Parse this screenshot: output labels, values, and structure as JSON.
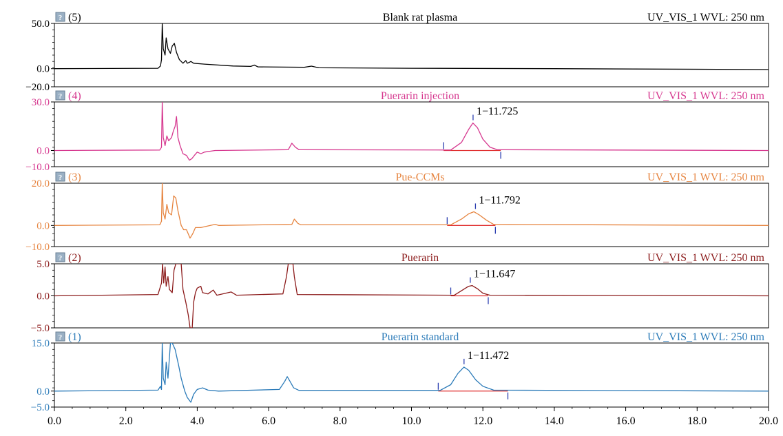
{
  "chart_data": {
    "type": "line",
    "x_axis": {
      "range": [
        0.0,
        20.0
      ],
      "tick_labels": [
        "0.0",
        "2.0",
        "4.0",
        "6.0",
        "8.0",
        "10.0",
        "12.0",
        "14.0",
        "16.0",
        "18.0",
        "20.0"
      ]
    },
    "panels": [
      {
        "id": "(5)",
        "title": "Blank rat plasma",
        "detector": "UV_VIS_1 WVL: 250 nm",
        "color": "#000000",
        "y_range": [
          -20.0,
          50.0
        ],
        "y_tick_labels": [
          "50.0",
          "0.0",
          "−20.0"
        ],
        "y_tick_values": [
          50,
          0,
          -20
        ],
        "points": [
          [
            0,
            0
          ],
          [
            2.9,
            0.5
          ],
          [
            2.97,
            3
          ],
          [
            3.0,
            10
          ],
          [
            3.02,
            50
          ],
          [
            3.05,
            22
          ],
          [
            3.1,
            15
          ],
          [
            3.13,
            34
          ],
          [
            3.18,
            22
          ],
          [
            3.25,
            17
          ],
          [
            3.3,
            25
          ],
          [
            3.36,
            28
          ],
          [
            3.42,
            18
          ],
          [
            3.5,
            10
          ],
          [
            3.6,
            6
          ],
          [
            3.68,
            9
          ],
          [
            3.72,
            6
          ],
          [
            3.78,
            7
          ],
          [
            3.82,
            8
          ],
          [
            3.9,
            6
          ],
          [
            4.2,
            5
          ],
          [
            5.0,
            3
          ],
          [
            5.5,
            2.5
          ],
          [
            5.6,
            4
          ],
          [
            5.7,
            2
          ],
          [
            7.0,
            1.5
          ],
          [
            7.2,
            2.8
          ],
          [
            7.4,
            1
          ],
          [
            10,
            0.5
          ],
          [
            14,
            0
          ],
          [
            20,
            -1
          ]
        ],
        "peak": null
      },
      {
        "id": "(4)",
        "title": "Puerarin injection",
        "detector": "UV_VIS_1 WVL: 250 nm",
        "color": "#d6388f",
        "y_range": [
          -10.0,
          30.0
        ],
        "y_tick_labels": [
          "30.0",
          "0.0",
          "−10.0"
        ],
        "y_tick_values": [
          30,
          0,
          -10
        ],
        "points": [
          [
            0,
            0
          ],
          [
            2.95,
            0.3
          ],
          [
            3.0,
            2
          ],
          [
            3.02,
            30
          ],
          [
            3.05,
            8
          ],
          [
            3.1,
            3
          ],
          [
            3.15,
            9
          ],
          [
            3.2,
            6
          ],
          [
            3.28,
            8
          ],
          [
            3.33,
            12
          ],
          [
            3.38,
            15
          ],
          [
            3.42,
            21
          ],
          [
            3.46,
            8
          ],
          [
            3.52,
            3
          ],
          [
            3.6,
            -2
          ],
          [
            3.7,
            -3
          ],
          [
            3.78,
            -6
          ],
          [
            3.85,
            -5
          ],
          [
            3.92,
            -3
          ],
          [
            4.0,
            -1
          ],
          [
            4.1,
            -2
          ],
          [
            4.2,
            -1
          ],
          [
            4.5,
            0
          ],
          [
            6.55,
            0.5
          ],
          [
            6.65,
            4.5
          ],
          [
            6.75,
            2
          ],
          [
            6.85,
            0.5
          ],
          [
            11.1,
            0.3
          ],
          [
            11.4,
            5
          ],
          [
            11.6,
            13
          ],
          [
            11.72,
            17
          ],
          [
            11.85,
            14
          ],
          [
            12.0,
            7
          ],
          [
            12.2,
            2
          ],
          [
            12.4,
            0.5
          ],
          [
            20,
            0
          ]
        ],
        "peak": {
          "label": "1−11.725",
          "rt": 11.725,
          "height": 17,
          "baseline_start": 10.9,
          "baseline_end": 12.5
        }
      },
      {
        "id": "(3)",
        "title": "Pue-CCMs",
        "detector": "UV_VIS_1 WVL: 250 nm",
        "color": "#e6843f",
        "y_range": [
          -10.0,
          20.0
        ],
        "y_tick_labels": [
          "20.0",
          "0.0",
          "−10.0"
        ],
        "y_tick_values": [
          20,
          0,
          -10
        ],
        "points": [
          [
            0,
            0
          ],
          [
            2.95,
            0.3
          ],
          [
            3.0,
            2
          ],
          [
            3.02,
            20
          ],
          [
            3.05,
            6
          ],
          [
            3.1,
            3
          ],
          [
            3.15,
            10
          ],
          [
            3.2,
            6
          ],
          [
            3.28,
            5
          ],
          [
            3.34,
            14
          ],
          [
            3.4,
            13
          ],
          [
            3.46,
            7
          ],
          [
            3.55,
            0
          ],
          [
            3.62,
            -2
          ],
          [
            3.7,
            -2
          ],
          [
            3.8,
            -6
          ],
          [
            3.87,
            -4
          ],
          [
            3.95,
            -1
          ],
          [
            4.1,
            -1
          ],
          [
            4.5,
            0.5
          ],
          [
            4.6,
            0
          ],
          [
            6.65,
            0.5
          ],
          [
            6.72,
            3
          ],
          [
            6.82,
            1
          ],
          [
            6.9,
            0.3
          ],
          [
            11.1,
            0.3
          ],
          [
            11.4,
            3
          ],
          [
            11.6,
            5.5
          ],
          [
            11.75,
            6.5
          ],
          [
            11.9,
            5
          ],
          [
            12.1,
            2.5
          ],
          [
            12.3,
            0.5
          ],
          [
            20,
            0
          ]
        ],
        "peak": {
          "label": "1−11.792",
          "rt": 11.792,
          "height": 6.5,
          "baseline_start": 11.0,
          "baseline_end": 12.35
        }
      },
      {
        "id": "(2)",
        "title": "Puerarin",
        "detector": "UV_VIS_1 WVL: 250 nm",
        "color": "#8b1a1a",
        "y_range": [
          -5.0,
          5.0
        ],
        "y_tick_labels": [
          "5.0",
          "0.0",
          "−5.0"
        ],
        "y_tick_values": [
          5,
          0,
          -5
        ],
        "points": [
          [
            0,
            0
          ],
          [
            2.9,
            0.2
          ],
          [
            3.0,
            2
          ],
          [
            3.03,
            5
          ],
          [
            3.06,
            2
          ],
          [
            3.1,
            4.5
          ],
          [
            3.13,
            1.5
          ],
          [
            3.18,
            3
          ],
          [
            3.22,
            1
          ],
          [
            3.3,
            0.5
          ],
          [
            3.35,
            4
          ],
          [
            3.4,
            5
          ],
          [
            3.55,
            5
          ],
          [
            3.6,
            1
          ],
          [
            3.68,
            -1
          ],
          [
            3.75,
            -3
          ],
          [
            3.8,
            -5
          ],
          [
            3.86,
            -5
          ],
          [
            3.9,
            -1
          ],
          [
            3.95,
            0.5
          ],
          [
            4.0,
            1.2
          ],
          [
            4.1,
            1.5
          ],
          [
            4.15,
            0.5
          ],
          [
            4.3,
            0.3
          ],
          [
            4.45,
            0.9
          ],
          [
            4.55,
            0.1
          ],
          [
            4.95,
            0.6
          ],
          [
            5.1,
            0.1
          ],
          [
            6.4,
            0.3
          ],
          [
            6.5,
            3
          ],
          [
            6.55,
            5
          ],
          [
            6.68,
            5
          ],
          [
            6.72,
            3
          ],
          [
            6.8,
            0.2
          ],
          [
            11.2,
            0.1
          ],
          [
            11.4,
            0.8
          ],
          [
            11.6,
            1.5
          ],
          [
            11.7,
            1.6
          ],
          [
            11.85,
            1.1
          ],
          [
            12.0,
            0.4
          ],
          [
            12.2,
            0.1
          ],
          [
            20,
            0
          ]
        ],
        "peak": {
          "label": "1−11.647",
          "rt": 11.647,
          "height": 1.6,
          "baseline_start": 11.1,
          "baseline_end": 12.15
        }
      },
      {
        "id": "(1)",
        "title": "Puerarin standard",
        "detector": "UV_VIS_1 WVL: 250 nm",
        "color": "#2a7ab8",
        "y_range": [
          -5.0,
          15.0
        ],
        "y_tick_labels": [
          "15.0",
          "0.0",
          "−5.0"
        ],
        "y_tick_values": [
          15,
          0,
          -5
        ],
        "points": [
          [
            0,
            0
          ],
          [
            2.9,
            0.3
          ],
          [
            2.97,
            1.5
          ],
          [
            3.0,
            0.5
          ],
          [
            3.02,
            15
          ],
          [
            3.05,
            4
          ],
          [
            3.1,
            2
          ],
          [
            3.13,
            9
          ],
          [
            3.18,
            4
          ],
          [
            3.25,
            15
          ],
          [
            3.3,
            15
          ],
          [
            3.38,
            13
          ],
          [
            3.48,
            8
          ],
          [
            3.55,
            4
          ],
          [
            3.65,
            0
          ],
          [
            3.72,
            -2
          ],
          [
            3.82,
            -3.5
          ],
          [
            3.9,
            -1
          ],
          [
            4.0,
            0.5
          ],
          [
            4.15,
            1
          ],
          [
            4.3,
            0.3
          ],
          [
            4.6,
            0
          ],
          [
            6.3,
            0.5
          ],
          [
            6.45,
            3
          ],
          [
            6.52,
            4.5
          ],
          [
            6.6,
            3
          ],
          [
            6.7,
            1
          ],
          [
            6.85,
            0.2
          ],
          [
            10.8,
            0.2
          ],
          [
            11.1,
            2
          ],
          [
            11.3,
            5.5
          ],
          [
            11.47,
            7.5
          ],
          [
            11.6,
            6.5
          ],
          [
            11.8,
            3.5
          ],
          [
            12.0,
            1.5
          ],
          [
            12.3,
            0.3
          ],
          [
            20,
            0
          ]
        ],
        "peak": {
          "label": "1−11.472",
          "rt": 11.472,
          "height": 7.5,
          "baseline_start": 10.75,
          "baseline_end": 12.7
        }
      }
    ],
    "grid": false,
    "legend": "none"
  }
}
